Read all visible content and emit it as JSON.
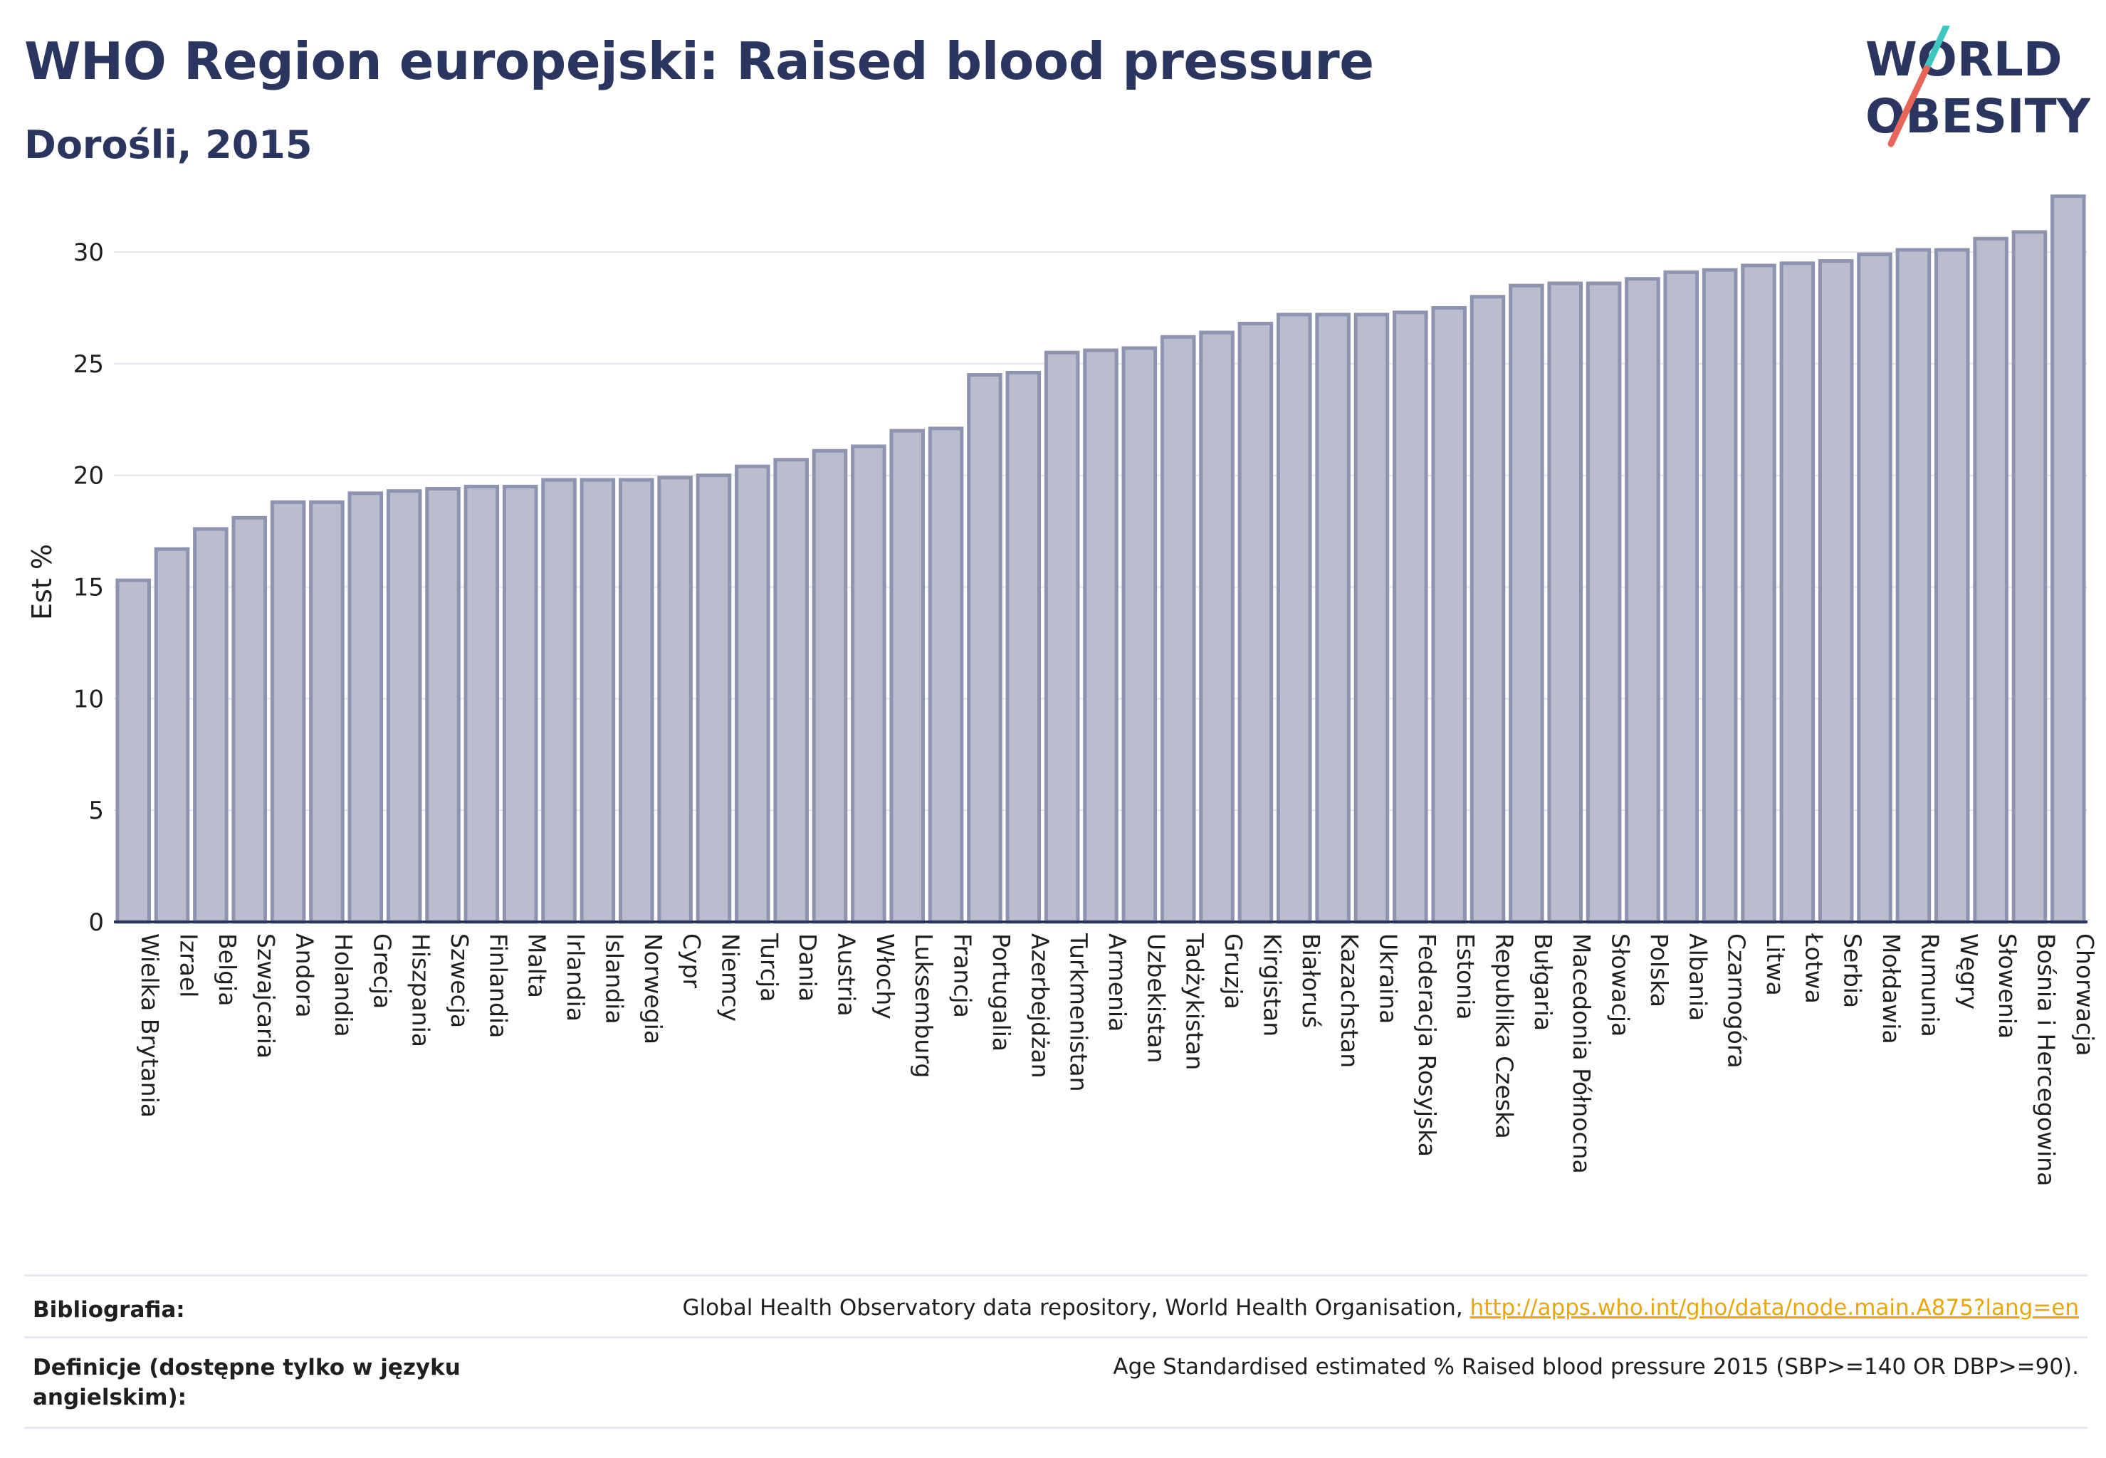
{
  "header": {
    "title": "WHO Region europejski: Raised blood pressure",
    "subtitle": "Dorośli, 2015"
  },
  "logo": {
    "line1": "WORLD",
    "line2": "OBESITY",
    "brand_color": "#2b3660",
    "slash_colors": [
      "#3ec6c0",
      "#e8655a"
    ]
  },
  "chart_data": {
    "type": "bar",
    "title": "WHO Region europejski: Raised blood pressure",
    "subtitle": "Dorośli, 2015",
    "xlabel": "",
    "ylabel": "Est %",
    "ylim": [
      0,
      33
    ],
    "yticks": [
      0,
      5,
      10,
      15,
      20,
      25,
      30
    ],
    "grid": true,
    "bar_color": "#b9bdcd",
    "bar_edge_color": "#8e94b0",
    "categories": [
      "Wielka Brytania",
      "Izrael",
      "Belgia",
      "Szwajcaria",
      "Andora",
      "Holandia",
      "Grecja",
      "Hiszpania",
      "Szwecja",
      "Finlandia",
      "Malta",
      "Irlandia",
      "Islandia",
      "Norwegia",
      "Cypr",
      "Niemcy",
      "Turcja",
      "Dania",
      "Austria",
      "Włochy",
      "Luksemburg",
      "Francja",
      "Portugalia",
      "Azerbejdżan",
      "Turkmenistan",
      "Armenia",
      "Uzbekistan",
      "Tadżykistan",
      "Gruzja",
      "Kirgistan",
      "Białoruś",
      "Kazachstan",
      "Ukraina",
      "Federacja Rosyjska",
      "Estonia",
      "Republika Czeska",
      "Bułgaria",
      "Macedonia Północna",
      "Słowacja",
      "Polska",
      "Albania",
      "Czarnogóra",
      "Litwa",
      "Łotwa",
      "Serbia",
      "Mołdawia",
      "Rumunia",
      "Węgry",
      "Słowenia",
      "Bośnia i Hercegowina",
      "Chorwacja"
    ],
    "values": [
      15.3,
      16.7,
      17.6,
      18.1,
      18.8,
      18.8,
      19.2,
      19.3,
      19.4,
      19.5,
      19.5,
      19.8,
      19.8,
      19.8,
      19.9,
      20.0,
      20.4,
      20.7,
      21.1,
      21.3,
      22.0,
      22.1,
      24.5,
      24.6,
      25.5,
      25.6,
      25.7,
      26.2,
      26.4,
      26.8,
      27.2,
      27.2,
      27.2,
      27.3,
      27.5,
      28.0,
      28.5,
      28.6,
      28.6,
      28.8,
      29.1,
      29.2,
      29.4,
      29.5,
      29.6,
      29.9,
      30.1,
      30.1,
      30.6,
      30.9,
      32.5
    ]
  },
  "footer": {
    "bibliography_label": "Bibliografia:",
    "bibliography_text": "Global Health Observatory data repository, World Health Organisation, ",
    "bibliography_link": "http://apps.who.int/gho/data/node.main.A875?lang=en",
    "definitions_label": "Definicje (dostępne tylko w języku angielskim):",
    "definitions_text": "Age Standardised estimated % Raised blood pressure 2015 (SBP>=140 OR DBP>=90)."
  }
}
